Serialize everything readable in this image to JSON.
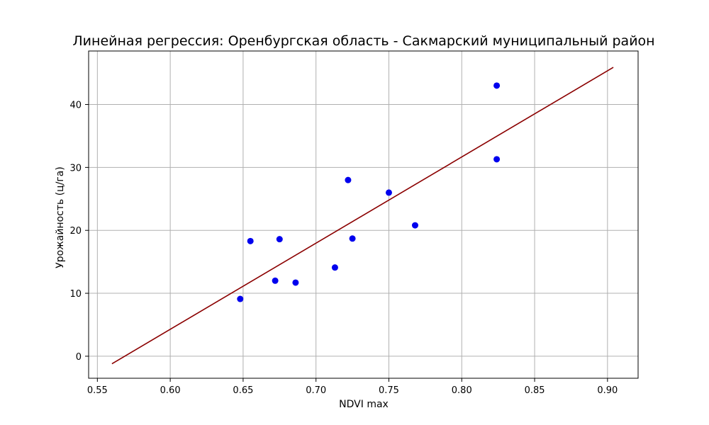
{
  "chart_data": {
    "type": "scatter",
    "title": "Линейная регрессия: Оренбургская область - Сакмарский муниципальный район",
    "xlabel": "NDVI max",
    "ylabel": "Урожайность (ц/га)",
    "xlim": [
      0.544,
      0.921
    ],
    "ylim": [
      -3.5,
      48.5
    ],
    "x_ticks": [
      0.55,
      0.6,
      0.65,
      0.7,
      0.75,
      0.8,
      0.85,
      0.9
    ],
    "x_tick_labels": [
      "0.55",
      "0.60",
      "0.65",
      "0.70",
      "0.75",
      "0.80",
      "0.85",
      "0.90"
    ],
    "y_ticks": [
      0,
      10,
      20,
      30,
      40
    ],
    "y_tick_labels": [
      "0",
      "10",
      "20",
      "30",
      "40"
    ],
    "grid": true,
    "points": [
      {
        "x": 0.648,
        "y": 9.1
      },
      {
        "x": 0.655,
        "y": 18.3
      },
      {
        "x": 0.672,
        "y": 12.0
      },
      {
        "x": 0.675,
        "y": 18.6
      },
      {
        "x": 0.686,
        "y": 11.7
      },
      {
        "x": 0.713,
        "y": 14.1
      },
      {
        "x": 0.722,
        "y": 28.0
      },
      {
        "x": 0.725,
        "y": 18.7
      },
      {
        "x": 0.75,
        "y": 26.0
      },
      {
        "x": 0.768,
        "y": 20.8
      },
      {
        "x": 0.824,
        "y": 43.0
      },
      {
        "x": 0.824,
        "y": 31.3
      }
    ],
    "regression_line": {
      "x": [
        0.56,
        0.904
      ],
      "y": [
        -1.2,
        45.9
      ]
    },
    "colors": {
      "points": "#0000ee",
      "line": "#8b0000",
      "grid": "#b0b0b0"
    }
  }
}
